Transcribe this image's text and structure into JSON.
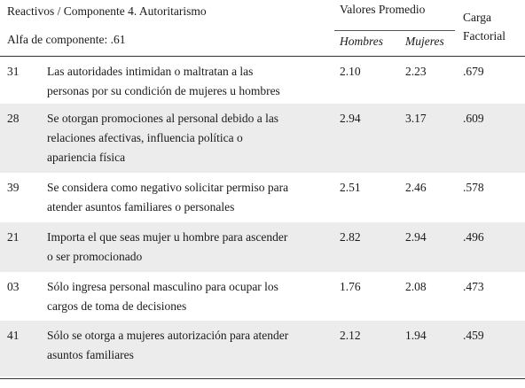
{
  "header": {
    "title": "Reactivos / Componente 4. Autoritarismo",
    "alpha": "Alfa de componente: .61",
    "valores": "Valores Promedio",
    "hombres": "Hombres",
    "mujeres": "Mujeres",
    "carga_line1": "Carga",
    "carga_line2": "Factorial"
  },
  "rows": [
    {
      "num": "31",
      "text_line1": "Las autoridades intimidan o maltratan a las",
      "text_line2": "personas por su condición de mujeres u hombres",
      "text_line3": "",
      "hombres": "2.10",
      "mujeres": "2.23",
      "carga": ".679"
    },
    {
      "num": "28",
      "text_line1": "Se otorgan promociones al personal debido a las",
      "text_line2": "relaciones afectivas, influencia política o",
      "text_line3": "apariencia física",
      "hombres": "2.94",
      "mujeres": "3.17",
      "carga": ".609"
    },
    {
      "num": "39",
      "text_line1": "Se considera como negativo solicitar permiso para",
      "text_line2": "atender asuntos familiares o personales",
      "text_line3": "",
      "hombres": "2.51",
      "mujeres": "2.46",
      "carga": ".578"
    },
    {
      "num": "21",
      "text_line1": "Importa el que seas mujer u hombre para ascender",
      "text_line2": "o ser promocionado",
      "text_line3": "",
      "hombres": "2.82",
      "mujeres": "2.94",
      "carga": ".496"
    },
    {
      "num": "03",
      "text_line1": "Sólo ingresa personal masculino para ocupar los",
      "text_line2": "cargos de toma de decisiones",
      "text_line3": "",
      "hombres": "1.76",
      "mujeres": "2.08",
      "carga": ".473"
    },
    {
      "num": "41",
      "text_line1": "Sólo se otorga a mujeres autorización para atender",
      "text_line2": "asuntos familiares",
      "text_line3": "",
      "hombres": "2.12",
      "mujeres": "1.94",
      "carga": ".459"
    }
  ]
}
